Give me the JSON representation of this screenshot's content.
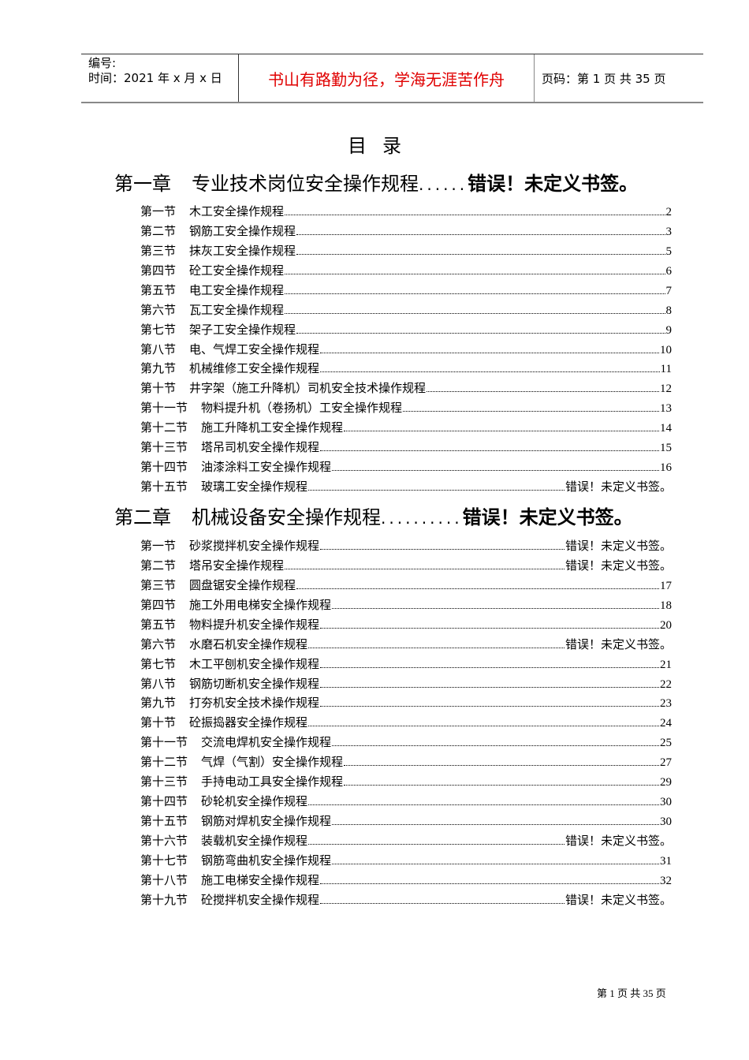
{
  "header": {
    "number_label": "编号:",
    "date_label": "时间：2021 年 x 月 x 日",
    "motto": "书山有路勤为径，学海无涯苦作舟",
    "page_label": "页码：第 1 页 共 35 页",
    "motto_color": "#e00000"
  },
  "title": "目录",
  "chapters": [
    {
      "label": "第一章",
      "title": "专业技术岗位安全操作规程",
      "dots": "......",
      "page": "错误！未定义书签。",
      "sections": [
        {
          "label": "第一节",
          "title": "木工安全操作规程",
          "page": "2"
        },
        {
          "label": "第二节",
          "title": "钢筋工安全操作规程",
          "page": "3"
        },
        {
          "label": "第三节",
          "title": "抹灰工安全操作规程",
          "page": "5"
        },
        {
          "label": "第四节",
          "title": "砼工安全操作规程",
          "page": "6"
        },
        {
          "label": "第五节",
          "title": "电工安全操作规程",
          "page": "7"
        },
        {
          "label": "第六节",
          "title": "瓦工安全操作规程",
          "page": "8"
        },
        {
          "label": "第七节",
          "title": "架子工安全操作规程",
          "page": "9"
        },
        {
          "label": "第八节",
          "title": "电、气焊工安全操作规程",
          "page": "10"
        },
        {
          "label": "第九节",
          "title": "机械维修工安全操作规程",
          "page": "11"
        },
        {
          "label": "第十节",
          "title": "井字架（施工升降机）司机安全技术操作规程",
          "page": "12"
        },
        {
          "label": "第十一节",
          "title": "物料提升机（卷扬机）工安全操作规程",
          "page": "13"
        },
        {
          "label": "第十二节",
          "title": "施工升降机工安全操作规程",
          "page": "14"
        },
        {
          "label": "第十三节",
          "title": "塔吊司机安全操作规程",
          "page": "15"
        },
        {
          "label": "第十四节",
          "title": "油漆涂料工安全操作规程",
          "page": "16"
        },
        {
          "label": "第十五节",
          "title": "玻璃工安全操作规程",
          "page": "错误！未定义书签。"
        }
      ]
    },
    {
      "label": "第二章",
      "title": "机械设备安全操作规程",
      "dots": "..........",
      "page": "错误！未定义书签。",
      "sections": [
        {
          "label": "第一节",
          "title": "砂浆搅拌机安全操作规程",
          "page": "错误！未定义书签。"
        },
        {
          "label": "第二节",
          "title": "塔吊安全操作规程",
          "page": "错误！未定义书签。"
        },
        {
          "label": "第三节",
          "title": "圆盘锯安全操作规程",
          "page": "17"
        },
        {
          "label": "第四节",
          "title": "施工外用电梯安全操作规程",
          "page": "18"
        },
        {
          "label": "第五节",
          "title": "物料提升机安全操作规程",
          "page": "20"
        },
        {
          "label": "第六节",
          "title": "水磨石机安全操作规程",
          "page": "错误！未定义书签。"
        },
        {
          "label": "第七节",
          "title": "木工平刨机安全操作规程",
          "page": "21"
        },
        {
          "label": "第八节",
          "title": "钢筋切断机安全操作规程",
          "page": "22"
        },
        {
          "label": "第九节",
          "title": "打夯机安全技术操作规程",
          "page": "23"
        },
        {
          "label": "第十节",
          "title": "砼振捣器安全操作规程",
          "page": "24"
        },
        {
          "label": "第十一节",
          "title": "交流电焊机安全操作规程",
          "page": "25"
        },
        {
          "label": "第十二节",
          "title": "气焊（气割）安全操作规程",
          "page": "27"
        },
        {
          "label": "第十三节",
          "title": "手持电动工具安全操作规程",
          "page": "29"
        },
        {
          "label": "第十四节",
          "title": "砂轮机安全操作规程",
          "page": "30"
        },
        {
          "label": "第十五节",
          "title": "钢筋对焊机安全操作规程",
          "page": "30"
        },
        {
          "label": "第十六节",
          "title": "装载机安全操作规程",
          "page": "错误！未定义书签。"
        },
        {
          "label": "第十七节",
          "title": "钢筋弯曲机安全操作规程",
          "page": "31"
        },
        {
          "label": "第十八节",
          "title": "施工电梯安全操作规程",
          "page": "32"
        },
        {
          "label": "第十九节",
          "title": "砼搅拌机安全操作规程",
          "page": "错误！未定义书签。"
        }
      ]
    }
  ],
  "footer": "第 1 页 共 35 页"
}
